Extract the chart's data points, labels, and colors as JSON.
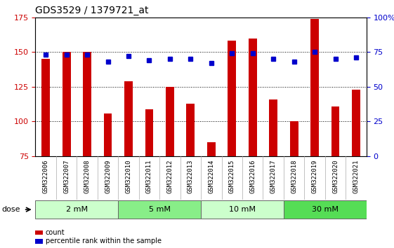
{
  "title": "GDS3529 / 1379721_at",
  "samples": [
    "GSM322006",
    "GSM322007",
    "GSM322008",
    "GSM322009",
    "GSM322010",
    "GSM322011",
    "GSM322012",
    "GSM322013",
    "GSM322014",
    "GSM322015",
    "GSM322016",
    "GSM322017",
    "GSM322018",
    "GSM322019",
    "GSM322020",
    "GSM322021"
  ],
  "counts": [
    145,
    150,
    150,
    106,
    129,
    109,
    125,
    113,
    85,
    158,
    160,
    116,
    100,
    174,
    111,
    123
  ],
  "percentile_ranks": [
    73,
    73,
    73,
    68,
    72,
    69,
    70,
    70,
    67,
    74,
    74,
    70,
    68,
    75,
    70,
    71
  ],
  "ylim_left": [
    75,
    175
  ],
  "ylim_right": [
    0,
    100
  ],
  "yticks_left": [
    75,
    100,
    125,
    150,
    175
  ],
  "yticks_right": [
    0,
    25,
    50,
    75,
    100
  ],
  "groups": [
    {
      "label": "2 mM",
      "start": 0,
      "end": 4,
      "color": "#ccffcc"
    },
    {
      "label": "5 mM",
      "start": 4,
      "end": 8,
      "color": "#88ee88"
    },
    {
      "label": "10 mM",
      "start": 8,
      "end": 12,
      "color": "#ccffcc"
    },
    {
      "label": "30 mM",
      "start": 12,
      "end": 16,
      "color": "#55dd55"
    }
  ],
  "bar_color": "#cc0000",
  "square_color": "#0000cc",
  "bar_width": 0.4,
  "grid_color": "#000000",
  "plot_bg_color": "#ffffff",
  "tick_bg_color": "#cccccc",
  "tick_label_size": 6.5,
  "title_fontsize": 10,
  "ylabel_left_color": "#cc0000",
  "ylabel_right_color": "#0000cc",
  "legend_items": [
    "count",
    "percentile rank within the sample"
  ],
  "dose_label": "dose"
}
